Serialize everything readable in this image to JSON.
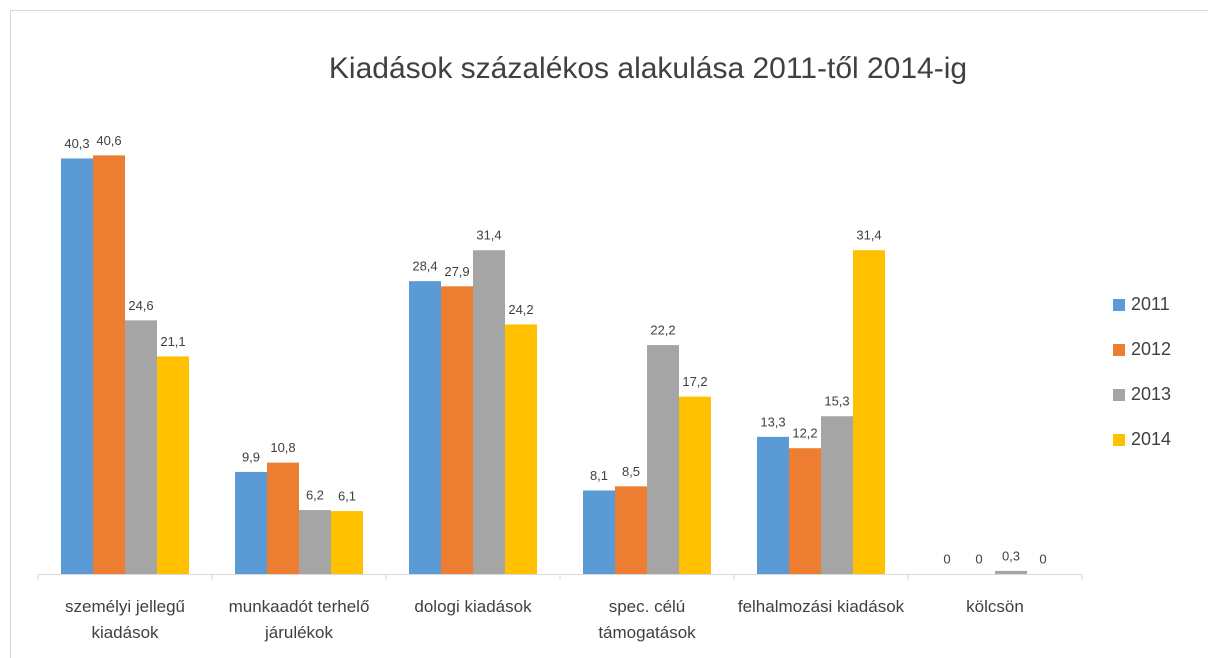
{
  "chart_data": {
    "type": "bar",
    "title": "Kiadások százalékos alakulása 2011-től 2014-ig",
    "categories": [
      "személyi jellegű kiadások",
      "munkaadót terhelő járulékok",
      "dologi kiadások",
      "spec. célú támogatások",
      "felhalmozási kiadások",
      "kölcsön"
    ],
    "series": [
      {
        "name": "2011",
        "color": "#5b9bd5",
        "values": [
          40.3,
          9.9,
          28.4,
          8.1,
          13.3,
          0
        ],
        "value_labels": [
          "40,3",
          "9,9",
          "28,4",
          "8,1",
          "13,3",
          "0"
        ]
      },
      {
        "name": "2012",
        "color": "#ed7d31",
        "values": [
          40.6,
          10.8,
          27.9,
          8.5,
          12.2,
          0
        ],
        "value_labels": [
          "40,6",
          "10,8",
          "27,9",
          "8,5",
          "12,2",
          "0"
        ]
      },
      {
        "name": "2013",
        "color": "#a5a5a5",
        "values": [
          24.6,
          6.2,
          31.4,
          22.2,
          15.3,
          0.3
        ],
        "value_labels": [
          "24,6",
          "6,2",
          "31,4",
          "22,2",
          "15,3",
          "0,3"
        ]
      },
      {
        "name": "2014",
        "color": "#ffc000",
        "values": [
          21.1,
          6.1,
          24.2,
          17.2,
          31.4,
          0
        ],
        "value_labels": [
          "21,1",
          "6,1",
          "24,2",
          "17,2",
          "31,4",
          "0"
        ]
      }
    ],
    "ylim": [
      0,
      45
    ],
    "legend": "right"
  }
}
